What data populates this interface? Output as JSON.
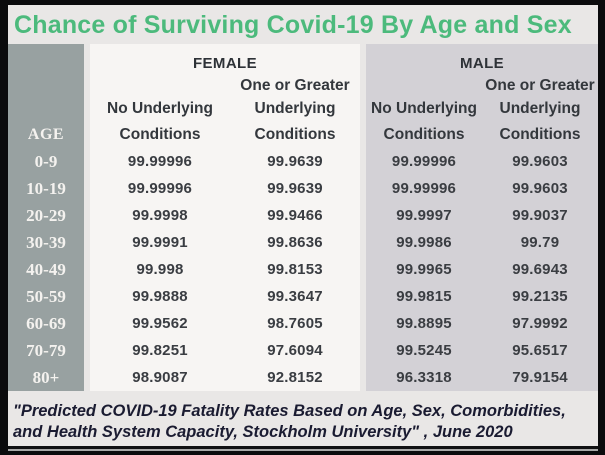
{
  "title": "Chance of Surviving Covid-19 By Age and Sex",
  "colors": {
    "title_green": "#4cba7c",
    "age_column_gray": "#98a1a1",
    "female_section_bg": "#f7f5f3",
    "male_section_bg": "#d3d1d6",
    "page_bg": "#e9e7e6",
    "data_text": "#3a3d42",
    "footer_text": "#1a1b31"
  },
  "table": {
    "age_header": "AGE",
    "female_label": "FEMALE",
    "male_label": "MALE",
    "subheaders": {
      "one_or_greater": "One or Greater",
      "no_underlying": "No Underlying",
      "underlying": "Underlying",
      "conditions": "Conditions"
    },
    "rows": [
      {
        "age": "0-9",
        "female_no_conditions": "99.99996",
        "female_with_conditions": "99.9639",
        "male_no_conditions": "99.99996",
        "male_with_conditions": "99.9603"
      },
      {
        "age": "10-19",
        "female_no_conditions": "99.99996",
        "female_with_conditions": "99.9639",
        "male_no_conditions": "99.99996",
        "male_with_conditions": "99.9603"
      },
      {
        "age": "20-29",
        "female_no_conditions": "99.9998",
        "female_with_conditions": "99.9466",
        "male_no_conditions": "99.9997",
        "male_with_conditions": "99.9037"
      },
      {
        "age": "30-39",
        "female_no_conditions": "99.9991",
        "female_with_conditions": "99.8636",
        "male_no_conditions": "99.9986",
        "male_with_conditions": "99.79"
      },
      {
        "age": "40-49",
        "female_no_conditions": "99.998",
        "female_with_conditions": "99.8153",
        "male_no_conditions": "99.9965",
        "male_with_conditions": "99.6943"
      },
      {
        "age": "50-59",
        "female_no_conditions": "99.9888",
        "female_with_conditions": "99.3647",
        "male_no_conditions": "99.9815",
        "male_with_conditions": "99.2135"
      },
      {
        "age": "60-69",
        "female_no_conditions": "99.9562",
        "female_with_conditions": "98.7605",
        "male_no_conditions": "99.8895",
        "male_with_conditions": "97.9992"
      },
      {
        "age": "70-79",
        "female_no_conditions": "99.8251",
        "female_with_conditions": "97.6094",
        "male_no_conditions": "99.5245",
        "male_with_conditions": "95.6517"
      },
      {
        "age": "80+",
        "female_no_conditions": "98.9087",
        "female_with_conditions": "92.8152",
        "male_no_conditions": "96.3318",
        "male_with_conditions": "79.9154"
      }
    ]
  },
  "footer": {
    "line1": "\"Predicted COVID-19 Fatality Rates Based on Age, Sex, Comorbidities,",
    "line2": "and Health System Capacity,  Stockholm University\" , June 2020"
  },
  "chart_data": {
    "type": "table",
    "title": "Chance of Surviving Covid-19 By Age and Sex",
    "unit": "percent chance of survival",
    "columns": [
      "AGE",
      "FEMALE - No Underlying Conditions",
      "FEMALE - One or Greater Underlying Conditions",
      "MALE - No Underlying Conditions",
      "MALE - One or Greater Underlying Conditions"
    ],
    "rows": [
      [
        "0-9",
        99.99996,
        99.9639,
        99.99996,
        99.9603
      ],
      [
        "10-19",
        99.99996,
        99.9639,
        99.99996,
        99.9603
      ],
      [
        "20-29",
        99.9998,
        99.9466,
        99.9997,
        99.9037
      ],
      [
        "30-39",
        99.9991,
        99.8636,
        99.9986,
        99.79
      ],
      [
        "40-49",
        99.998,
        99.8153,
        99.9965,
        99.6943
      ],
      [
        "50-59",
        99.9888,
        99.3647,
        99.9815,
        99.2135
      ],
      [
        "60-69",
        99.9562,
        98.7605,
        99.8895,
        97.9992
      ],
      [
        "70-79",
        99.8251,
        97.6094,
        99.5245,
        95.6517
      ],
      [
        "80+",
        98.9087,
        92.8152,
        96.3318,
        79.9154
      ]
    ],
    "source_note": "\"Predicted COVID-19 Fatality Rates Based on Age, Sex, Comorbidities, and Health System Capacity, Stockholm University\", June 2020"
  }
}
